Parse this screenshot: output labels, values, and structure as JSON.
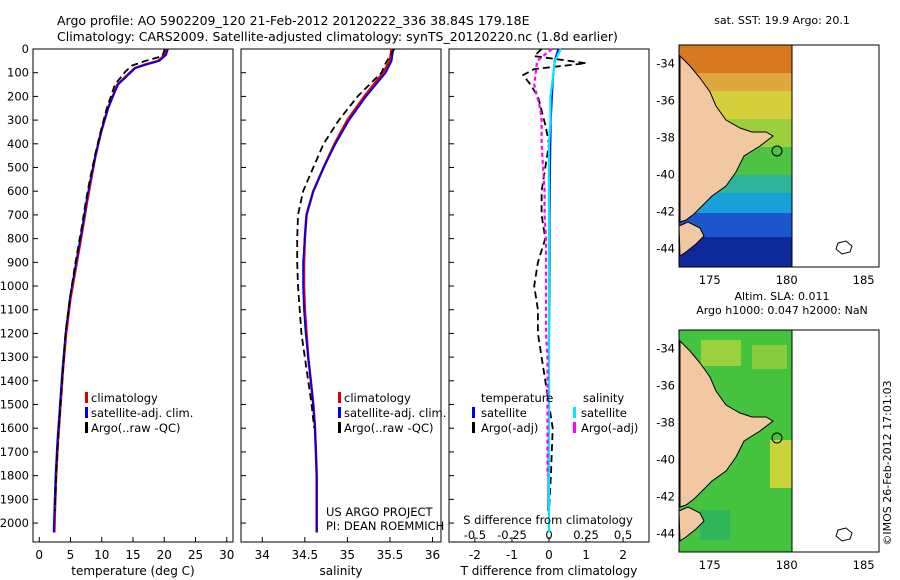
{
  "header": {
    "line1": "Argo profile: AO 5902209_120 21-Feb-2012 20120222_336 38.84S 179.18E",
    "line2": "Climatology: CARS2009. Satellite-adjusted climatology: synTS_20120220.nc (1.8d earlier)"
  },
  "colors": {
    "climatology": "#dd0000",
    "satellite": "#0000ee",
    "argo": "#000000",
    "salinity_satellite": "#00e8ff",
    "salinity_argo": "#ff00ff"
  },
  "panel_temp": {
    "xlabel": "temperature (deg C)",
    "legend": [
      "climatology",
      "satellite-adj. clim.",
      "Argo(..raw -QC)"
    ]
  },
  "panel_sal": {
    "xlabel": "salinity",
    "legend": [
      "climatology",
      "satellite-adj. clim.",
      "Argo(..raw -QC)"
    ],
    "project_line1": "US ARGO PROJECT",
    "project_line2": "PI: DEAN ROEMMICH"
  },
  "panel_diff": {
    "xlabel": "T difference from climatology",
    "top_label": "S difference from climatology",
    "legend_temp_title": "temperature",
    "legend_sal_title": "salinity",
    "legend_temp_sat": "satellite",
    "legend_temp_argo": "Argo(-adj)",
    "legend_sal_sat": "satellite",
    "legend_sal_argo": "Argo(-adj)"
  },
  "map_sst": {
    "title": "sat. SST: 19.9 Argo: 20.1",
    "xticks": [
      "175",
      "180",
      "185"
    ],
    "yticks": [
      "-34",
      "-36",
      "-38",
      "-40",
      "-42",
      "-44"
    ]
  },
  "map_sla": {
    "title1": "Altim. SLA: 0.011",
    "title2": "Argo h1000: 0.047 h2000: NaN",
    "xticks": [
      "175",
      "180",
      "185"
    ],
    "yticks": [
      "-34",
      "-36",
      "-38",
      "-40",
      "-42",
      "-44"
    ]
  },
  "watermark": "©IMOS 26-Feb-2012 17:01:03",
  "chart_data": [
    {
      "type": "line",
      "title": "",
      "xlabel": "temperature (deg C)",
      "ylabel": "",
      "xlim": [
        -1,
        31
      ],
      "ylim": [
        2080,
        0
      ],
      "xticks": [
        0,
        5,
        10,
        15,
        20,
        25,
        30
      ],
      "yticks": [
        0,
        100,
        200,
        300,
        400,
        500,
        600,
        700,
        800,
        900,
        1000,
        1100,
        1200,
        1300,
        1400,
        1500,
        1600,
        1700,
        1800,
        1900,
        2000
      ],
      "series": [
        {
          "name": "climatology",
          "x": [
            20.3,
            20.1,
            19.0,
            17.0,
            15.3,
            14.5,
            12.5,
            11.0,
            9.9,
            9.0,
            8.3,
            7.6,
            7.0,
            6.0,
            5.0,
            4.3,
            3.8,
            3.4,
            3.0,
            2.7,
            2.5,
            2.4
          ],
          "depth": [
            0,
            25,
            50,
            65,
            80,
            100,
            150,
            250,
            350,
            450,
            550,
            650,
            750,
            900,
            1050,
            1200,
            1350,
            1500,
            1650,
            1800,
            1950,
            2040
          ]
        },
        {
          "name": "satellite-adj. clim.",
          "x": [
            20.6,
            20.3,
            19.2,
            17.2,
            15.4,
            14.6,
            12.6,
            11.0,
            9.9,
            9.0,
            8.2,
            7.5,
            6.9,
            5.9,
            4.9,
            4.2,
            3.7,
            3.3,
            2.9,
            2.6,
            2.4,
            2.3
          ],
          "depth": [
            0,
            25,
            50,
            65,
            80,
            100,
            150,
            250,
            350,
            450,
            550,
            650,
            750,
            900,
            1050,
            1200,
            1350,
            1500,
            1650,
            1800,
            1950,
            2040
          ]
        },
        {
          "name": "Argo(..raw -QC)",
          "x": [
            20.1,
            19.9,
            19.7,
            17.0,
            14.8,
            13.8,
            12.1,
            10.8,
            9.8,
            8.9,
            8.1,
            7.4,
            6.8,
            5.8,
            4.9,
            4.2,
            3.8,
            3.4,
            3.0,
            2.7,
            2.5
          ],
          "depth": [
            0,
            15,
            30,
            50,
            70,
            95,
            150,
            250,
            350,
            450,
            550,
            650,
            750,
            900,
            1050,
            1200,
            1350,
            1500,
            1650,
            1800,
            1950
          ]
        }
      ]
    },
    {
      "type": "line",
      "xlabel": "salinity",
      "xlim": [
        33.75,
        36.1
      ],
      "ylim": [
        2080,
        0
      ],
      "xticks": [
        34,
        34.5,
        35,
        35.5,
        36
      ],
      "series": [
        {
          "name": "climatology",
          "x": [
            35.52,
            35.5,
            35.42,
            35.2,
            35.0,
            34.85,
            34.72,
            34.6,
            34.52,
            34.5,
            34.49,
            34.49,
            34.5,
            34.52,
            34.54,
            34.57,
            34.6,
            34.62,
            34.63,
            34.64,
            34.64
          ],
          "depth": [
            0,
            50,
            100,
            200,
            300,
            400,
            500,
            600,
            700,
            800,
            900,
            1000,
            1100,
            1200,
            1300,
            1400,
            1500,
            1600,
            1700,
            1800,
            2040
          ]
        },
        {
          "name": "satellite-adj. clim.",
          "x": [
            35.54,
            35.52,
            35.45,
            35.22,
            35.02,
            34.86,
            34.72,
            34.6,
            34.52,
            34.5,
            34.48,
            34.48,
            34.49,
            34.51,
            34.54,
            34.57,
            34.6,
            34.62,
            34.63,
            34.64,
            34.64
          ],
          "depth": [
            0,
            50,
            100,
            200,
            300,
            400,
            500,
            600,
            700,
            800,
            900,
            1000,
            1100,
            1200,
            1300,
            1400,
            1500,
            1600,
            1700,
            1800,
            2040
          ]
        },
        {
          "name": "Argo(..raw -QC)",
          "x": [
            35.55,
            35.45,
            35.4,
            35.12,
            34.9,
            34.72,
            34.6,
            34.48,
            34.42,
            34.41,
            34.41,
            34.42,
            34.44,
            34.46,
            34.5,
            34.54,
            34.58,
            34.61
          ],
          "depth": [
            0,
            60,
            100,
            200,
            300,
            400,
            500,
            600,
            700,
            800,
            900,
            1000,
            1100,
            1200,
            1300,
            1400,
            1500,
            1600
          ]
        }
      ]
    },
    {
      "type": "line",
      "xlabel": "T difference from climatology",
      "top_label": "S difference from climatology",
      "xlim": [
        -2.7,
        2.7
      ],
      "ylim": [
        2080,
        0
      ],
      "xticks": [
        -2,
        -1,
        0,
        1,
        2
      ],
      "xticks_top": [
        -0.5,
        -0.25,
        0,
        0.25,
        0.5
      ],
      "series": [
        {
          "name": "temperature satellite",
          "x": [
            0.25,
            0.2,
            0.15,
            0.12,
            0.1,
            0.08,
            0.05,
            0.04,
            0.03,
            0.02,
            0.02,
            0.01,
            0.0,
            0.0,
            -0.01,
            -0.02
          ],
          "depth": [
            0,
            25,
            50,
            100,
            150,
            200,
            300,
            400,
            500,
            700,
            900,
            1100,
            1300,
            1500,
            1700,
            1950
          ]
        },
        {
          "name": "temperature Argo(-adj)",
          "x": [
            -0.2,
            -0.4,
            1.0,
            -0.4,
            -0.7,
            -0.5,
            -0.3,
            -0.2,
            -0.1,
            0.0,
            -0.1,
            -0.2,
            -0.2,
            -0.1,
            -0.3,
            -0.4,
            -0.3,
            -0.3,
            -0.2,
            -0.1,
            0.0,
            0.1,
            0.05,
            0.0
          ],
          "depth": [
            0,
            30,
            60,
            85,
            110,
            150,
            200,
            260,
            320,
            400,
            500,
            600,
            700,
            800,
            900,
            1000,
            1100,
            1200,
            1300,
            1400,
            1500,
            1600,
            1800,
            1950
          ]
        },
        {
          "name": "salinity satellite",
          "x": [
            0.08,
            0.06,
            0.04,
            0.03,
            0.02,
            0.01,
            0.01,
            0.0,
            0.0,
            0.0,
            0.0,
            0.0,
            0.0,
            0.0
          ],
          "depth": [
            0,
            25,
            50,
            100,
            150,
            200,
            300,
            400,
            600,
            800,
            1000,
            1300,
            1600,
            2040
          ]
        },
        {
          "name": "salinity Argo(-adj)",
          "x": [
            0.02,
            -0.02,
            -0.08,
            -0.09,
            -0.1,
            -0.08,
            -0.06,
            -0.05,
            -0.05,
            -0.04,
            -0.03,
            -0.03,
            -0.02,
            -0.02,
            -0.02,
            -0.02,
            -0.02,
            -0.01,
            -0.01,
            -0.01,
            -0.01,
            -0.01,
            -0.01
          ],
          "depth": [
            0,
            20,
            50,
            100,
            150,
            200,
            250,
            300,
            400,
            500,
            600,
            700,
            800,
            900,
            1000,
            1100,
            1200,
            1300,
            1400,
            1500,
            1600,
            1700,
            1800
          ]
        }
      ]
    },
    {
      "type": "heatmap",
      "title": "sat. SST: 19.9 Argo: 20.1",
      "x_range_lon": [
        173,
        186
      ],
      "y_range_lat": [
        -45,
        -33
      ],
      "xticks": [
        175,
        180,
        185
      ],
      "yticks": [
        -34,
        -36,
        -38,
        -40,
        -42,
        -44
      ],
      "profile_location": {
        "lon": 179.18,
        "lat": -38.84
      }
    },
    {
      "type": "heatmap",
      "title": "Altim. SLA: 0.011 / Argo h1000: 0.047 h2000: NaN",
      "x_range_lon": [
        173,
        186
      ],
      "y_range_lat": [
        -45,
        -33
      ],
      "xticks": [
        175,
        180,
        185
      ],
      "yticks": [
        -34,
        -36,
        -38,
        -40,
        -42,
        -44
      ],
      "profile_location": {
        "lon": 179.18,
        "lat": -38.84
      }
    }
  ]
}
